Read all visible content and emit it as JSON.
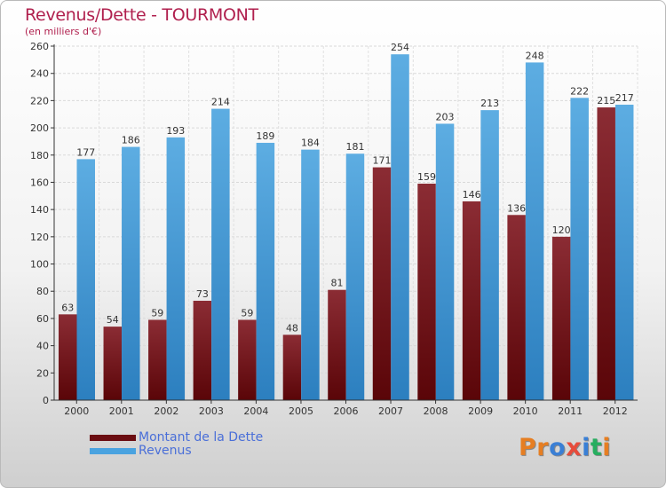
{
  "title": "Revenus/Dette - TOURMONT",
  "subtitle": "(en milliers d'€)",
  "logo_text": "Proxiti",
  "logo_colors": [
    "#e67e22",
    "#e67e22",
    "#3a7fd5",
    "#e74c3c",
    "#3a7fd5",
    "#27ae60",
    "#e67e22"
  ],
  "colors": {
    "dette_top": "#8b2c34",
    "dette_bottom": "#5a0508",
    "revenus_top": "#5dade2",
    "revenus_bottom": "#2c7fbf",
    "title": "#b0204e",
    "legend_text": "#4a6fd8"
  },
  "legend": [
    {
      "label": "Montant de la Dette",
      "color": "#6b0d12"
    },
    {
      "label": "Revenus",
      "color": "#4aa3e0"
    }
  ],
  "chart_data": {
    "type": "bar",
    "title": "Revenus/Dette - TOURMONT",
    "subtitle": "(en milliers d'€)",
    "categories": [
      "2000",
      "2001",
      "2002",
      "2003",
      "2004",
      "2005",
      "2006",
      "2007",
      "2008",
      "2009",
      "2010",
      "2011",
      "2012"
    ],
    "series": [
      {
        "name": "Montant de la Dette",
        "values": [
          63,
          54,
          59,
          73,
          59,
          48,
          81,
          171,
          159,
          146,
          136,
          120,
          215
        ]
      },
      {
        "name": "Revenus",
        "values": [
          177,
          186,
          193,
          214,
          189,
          184,
          181,
          254,
          203,
          213,
          248,
          222,
          217
        ]
      }
    ],
    "ylim": [
      0,
      260
    ],
    "yticks": [
      0,
      20,
      40,
      60,
      80,
      100,
      120,
      140,
      160,
      180,
      200,
      220,
      240,
      260
    ],
    "grid": true,
    "legend_position": "bottom-left"
  }
}
